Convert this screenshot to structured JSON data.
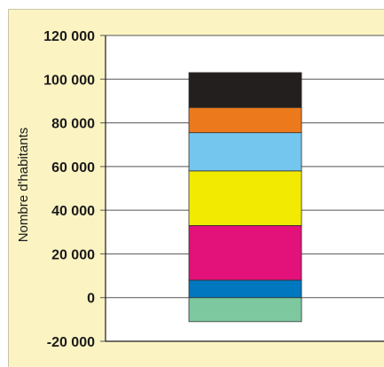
{
  "chart_data": {
    "type": "bar",
    "stacked": true,
    "ylabel": "Nombre d'habitants",
    "ylim": [
      -20000,
      120000
    ],
    "y_ticks": [
      "120 000",
      "100 000",
      "80 000",
      "60 000",
      "40 000",
      "20 000",
      "0",
      "-20 000"
    ],
    "grid": true,
    "legend": "none",
    "segments": [
      {
        "from": -11000,
        "to": 0,
        "color": "#7ec8a0"
      },
      {
        "from": 0,
        "to": 8000,
        "color": "#0077bf"
      },
      {
        "from": 8000,
        "to": 33000,
        "color": "#e2127a"
      },
      {
        "from": 33000,
        "to": 58000,
        "color": "#f2ea00"
      },
      {
        "from": 58000,
        "to": 75500,
        "color": "#74c6ee"
      },
      {
        "from": 75500,
        "to": 87000,
        "color": "#ec7a1c"
      },
      {
        "from": 87000,
        "to": 103000,
        "color": "#231f1e"
      }
    ]
  },
  "colors": {
    "background": "#fbf3c2",
    "plot_area": "#ffffff",
    "axis": "#1a1a1a"
  }
}
